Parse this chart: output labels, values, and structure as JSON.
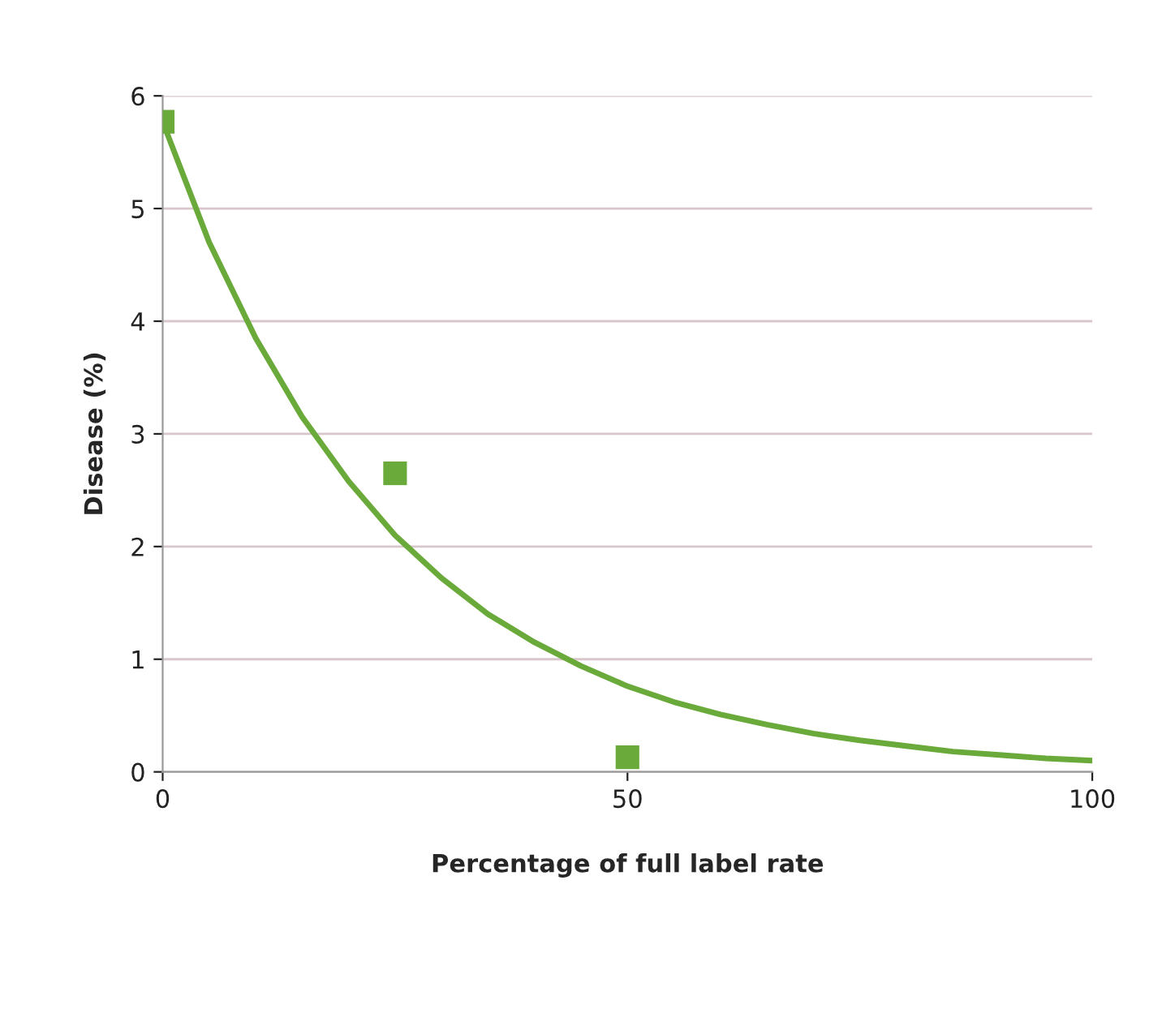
{
  "chart_data": {
    "type": "line",
    "xlabel": "Percentage of full label rate",
    "ylabel": "Disease (%)",
    "xlim": [
      0,
      100
    ],
    "xticks": [
      0,
      50,
      100
    ],
    "ylim": [
      0,
      6
    ],
    "yticks": [
      0,
      1,
      2,
      3,
      4,
      5,
      6
    ],
    "grid": "y",
    "series": [
      {
        "type": "scatter",
        "marker": "square",
        "color": "#6aaa3a",
        "x": [
          0,
          25,
          50
        ],
        "values": [
          5.77,
          2.65,
          0.13
        ]
      },
      {
        "marker": "none",
        "line_style": "solid",
        "color": "#6aaa3a",
        "x": [
          0,
          5,
          10,
          15,
          20,
          25,
          30,
          35,
          40,
          45,
          50,
          55,
          60,
          65,
          70,
          75,
          80,
          85,
          90,
          95,
          100
        ],
        "values": [
          5.77,
          4.7,
          3.85,
          3.15,
          2.58,
          2.1,
          1.72,
          1.4,
          1.15,
          0.94,
          0.76,
          0.62,
          0.51,
          0.42,
          0.34,
          0.28,
          0.23,
          0.18,
          0.15,
          0.12,
          0.1
        ]
      }
    ]
  }
}
